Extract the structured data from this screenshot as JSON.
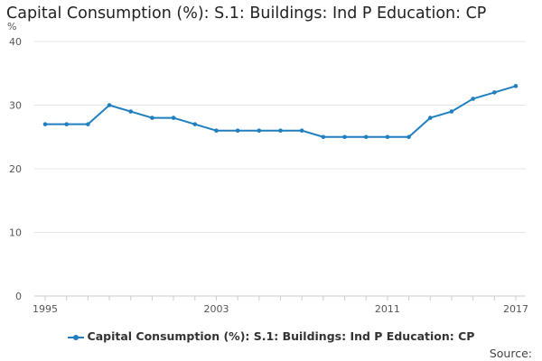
{
  "title": "Capital Consumption (%): S.1: Buildings: Ind P Education: CP",
  "y_unit": "%",
  "source_label": "Source:",
  "colors": {
    "series": "#1f7fbf",
    "grid": "#e6e6e6",
    "tick_text": "#555555"
  },
  "chart_data": {
    "type": "line",
    "title": "Capital Consumption (%): S.1: Buildings: Ind P Education: CP",
    "xlabel": "",
    "ylabel": "%",
    "ylim": [
      0,
      40
    ],
    "yticks": [
      0,
      10,
      20,
      30,
      40
    ],
    "xlim": [
      1995,
      2017
    ],
    "xticks": [
      1995,
      2003,
      2011,
      2017
    ],
    "grid": true,
    "legend": "bottom",
    "x": [
      1995,
      1996,
      1997,
      1998,
      1999,
      2000,
      2001,
      2002,
      2003,
      2004,
      2005,
      2006,
      2007,
      2008,
      2009,
      2010,
      2011,
      2012,
      2013,
      2014,
      2015,
      2016,
      2017
    ],
    "series": [
      {
        "name": "Capital Consumption (%): S.1: Buildings: Ind P Education: CP",
        "values": [
          27,
          27,
          27,
          30,
          29,
          28,
          28,
          27,
          26,
          26,
          26,
          26,
          26,
          25,
          25,
          25,
          25,
          25,
          28,
          29,
          31,
          32,
          33
        ]
      }
    ]
  }
}
